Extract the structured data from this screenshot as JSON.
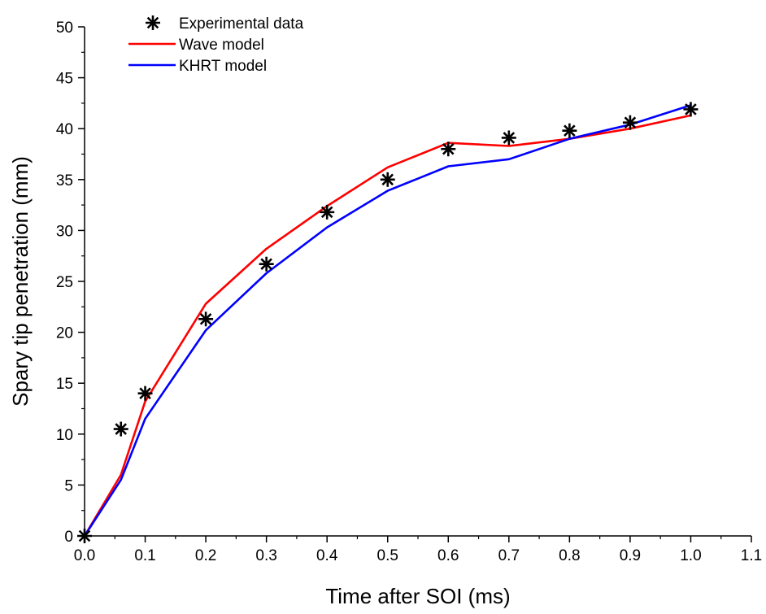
{
  "chart_data": {
    "type": "line",
    "title": "",
    "xlabel": "Time after SOI (ms)",
    "ylabel": "Spary tip penetration (mm)",
    "xlim": [
      0.0,
      1.1
    ],
    "ylim": [
      0,
      50
    ],
    "xticks": [
      "0.0",
      "0.1",
      "0.2",
      "0.3",
      "0.4",
      "0.5",
      "0.6",
      "0.7",
      "0.8",
      "0.9",
      "1.0",
      "1.1"
    ],
    "yticks": [
      "0",
      "5",
      "10",
      "15",
      "20",
      "25",
      "30",
      "35",
      "40",
      "45",
      "50"
    ],
    "grid": false,
    "legend_position": "top-left",
    "series": [
      {
        "name": "Experimental data",
        "kind": "scatter",
        "marker": "asterisk",
        "color": "#000000",
        "x": [
          0.0,
          0.06,
          0.1,
          0.2,
          0.3,
          0.4,
          0.5,
          0.6,
          0.7,
          0.8,
          0.9,
          1.0
        ],
        "y": [
          0.0,
          10.5,
          14.0,
          21.3,
          26.7,
          31.8,
          35.0,
          38.0,
          39.1,
          39.8,
          40.6,
          41.9
        ]
      },
      {
        "name": "Wave model",
        "kind": "line",
        "color": "#ff0000",
        "x": [
          0.0,
          0.06,
          0.1,
          0.2,
          0.3,
          0.4,
          0.5,
          0.6,
          0.7,
          0.8,
          0.9,
          1.0
        ],
        "y": [
          0.0,
          6.0,
          13.2,
          22.8,
          28.2,
          32.4,
          36.2,
          38.6,
          38.3,
          39.0,
          40.0,
          41.3
        ]
      },
      {
        "name": "KHRT model",
        "kind": "line",
        "color": "#0000ff",
        "x": [
          0.0,
          0.06,
          0.1,
          0.2,
          0.3,
          0.4,
          0.5,
          0.6,
          0.7,
          0.8,
          0.9,
          1.0
        ],
        "y": [
          0.0,
          5.5,
          11.5,
          20.2,
          25.8,
          30.3,
          33.9,
          36.3,
          37.0,
          39.0,
          40.4,
          42.3
        ]
      }
    ]
  }
}
